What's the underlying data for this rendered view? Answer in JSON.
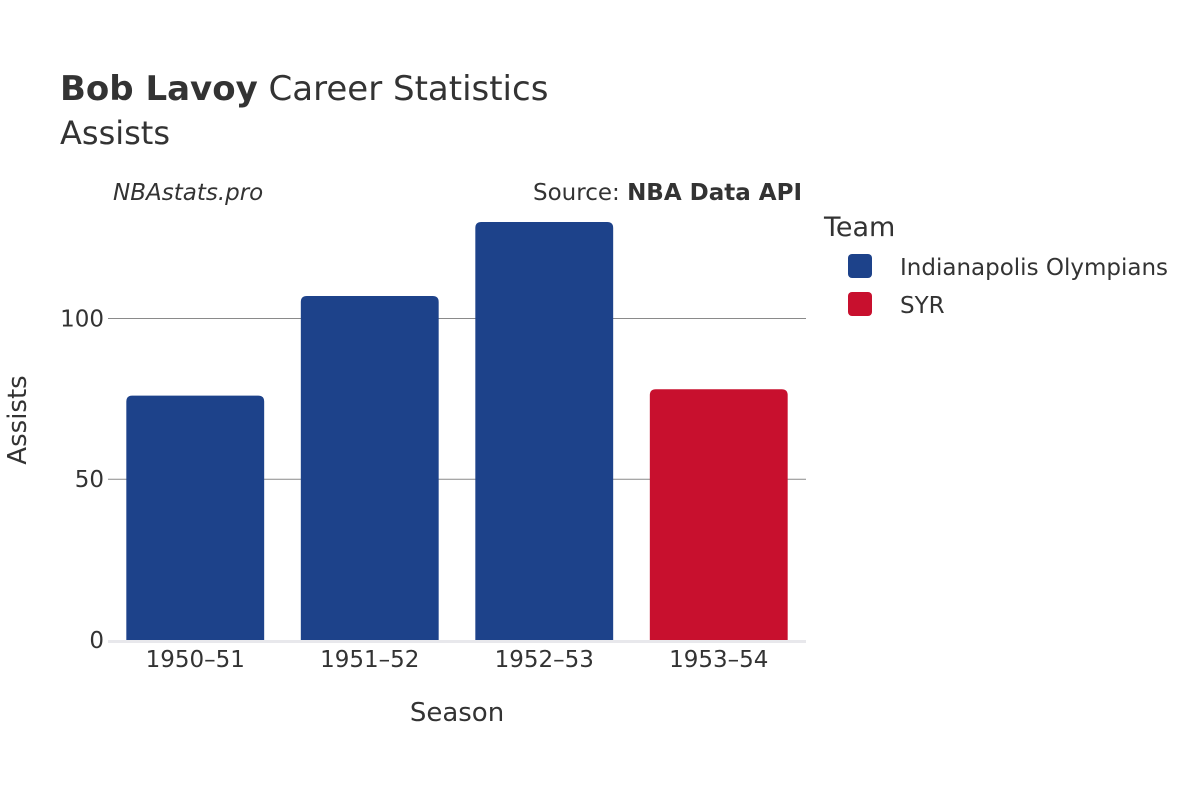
{
  "title": {
    "player": "Bob Lavoy",
    "suffix": " Career Statistics",
    "metric": "Assists"
  },
  "watermark": "NBAstats.pro",
  "source": {
    "label": "Source: ",
    "name": "NBA Data API"
  },
  "legend": {
    "title": "Team",
    "items": [
      {
        "label": "Indianapolis Olympians",
        "color": "#1d428a"
      },
      {
        "label": "SYR",
        "color": "#c8102e"
      }
    ]
  },
  "chart_data": {
    "type": "bar",
    "title": "Bob Lavoy Career Statistics Assists",
    "xlabel": "Season",
    "ylabel": "Assists",
    "ylim": [
      0,
      130
    ],
    "yticks": [
      0,
      50,
      100
    ],
    "categories": [
      "1950–51",
      "1951–52",
      "1952–53",
      "1953–54"
    ],
    "values": [
      76,
      107,
      130,
      78
    ],
    "teams": [
      "Indianapolis Olympians",
      "Indianapolis Olympians",
      "Indianapolis Olympians",
      "SYR"
    ],
    "colors": [
      "#1d428a",
      "#1d428a",
      "#1d428a",
      "#c8102e"
    ],
    "legend_position": "right",
    "grid": true
  }
}
